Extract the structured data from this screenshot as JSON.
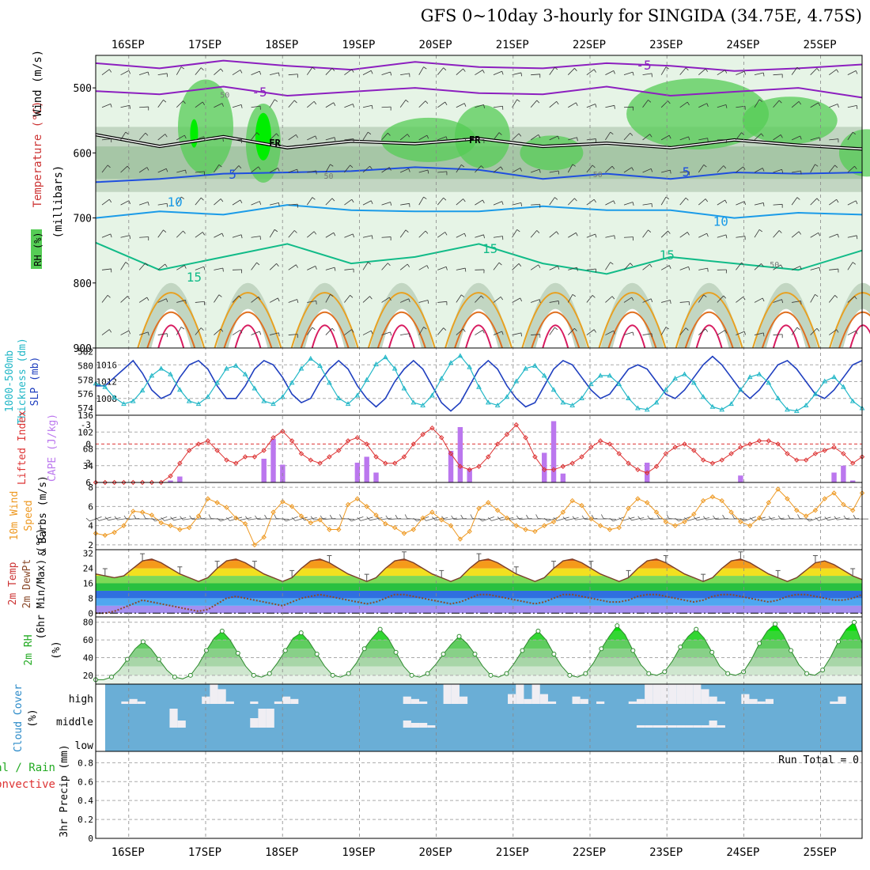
{
  "title": "GFS 0~10day 3-hourly for SINGIDA (34.75E, 4.75S)",
  "chart_data": {
    "type": "meteogram",
    "time_axis_labels": [
      "16SEP",
      "17SEP",
      "18SEP",
      "19SEP",
      "20SEP",
      "21SEP",
      "22SEP",
      "23SEP",
      "24SEP",
      "25SEP"
    ],
    "colors": {
      "rh_light": "#e6f4e6",
      "rh_mid": "#c2d6c2",
      "rh_dark": "#8fb98f",
      "rh_green": "#55cc55",
      "rh_bright": "#00ee00",
      "slp": "#1f3fbf",
      "thick": "#22b7c7",
      "li": "#dd3333",
      "cape": "#bb77ee",
      "wind": "#ee9922",
      "barb": "#555555",
      "cloud": "#6aaed6",
      "cloud_gap": "#f0eef3",
      "temp_fill": "#55cc55"
    },
    "panels": {
      "upper_air": {
        "ylabels": [
          "RH (%)",
          "Temperature (°C)",
          "Wind (m/s)",
          "(millibars)"
        ],
        "yticks": [
          500,
          600,
          700,
          800,
          900
        ],
        "ylim": [
          450,
          900
        ],
        "isotherm_labels": [
          {
            "text": "-5",
            "day": 1.7,
            "p": 513
          },
          {
            "text": "-5",
            "day": 6.7,
            "p": 472
          },
          {
            "text": "5",
            "day": 1.35,
            "p": 640
          },
          {
            "text": "5",
            "day": 7.25,
            "p": 636
          },
          {
            "text": "10",
            "day": 0.6,
            "p": 682
          },
          {
            "text": "10",
            "day": 7.7,
            "p": 712
          },
          {
            "text": "15",
            "day": 4.7,
            "p": 754
          },
          {
            "text": "15",
            "day": 7.0,
            "p": 764
          },
          {
            "text": "15",
            "day": 0.85,
            "p": 798
          }
        ],
        "freezing_labels": [
          {
            "text": "FR",
            "day": 1.9,
            "p": 590
          },
          {
            "text": "FR",
            "day": 4.5,
            "p": 585
          }
        ],
        "contour_label": "50",
        "isotherms": [
          {
            "name": "-5 upper",
            "color": "#8c1fbf",
            "p": [
              462,
              470,
              458,
              466,
              472,
              460,
              468,
              470,
              462,
              466,
              474,
              470,
              464
            ]
          },
          {
            "name": "-5 lower",
            "color": "#8c1fbf",
            "p": [
              505,
              510,
              498,
              512,
              506,
              500,
              508,
              510,
              498,
              512,
              506,
              500,
              515
            ]
          },
          {
            "name": "freezing",
            "color": "#000000",
            "p": [
              572,
              590,
              575,
              592,
              582,
              586,
              578,
              590,
              585,
              592,
              580,
              588,
              594
            ]
          },
          {
            "name": "5",
            "color": "#1f4fdf",
            "p": [
              645,
              640,
              632,
              630,
              628,
              622,
              626,
              640,
              632,
              640,
              630,
              632,
              630
            ]
          },
          {
            "name": "10",
            "color": "#1a9be8",
            "p": [
              700,
              690,
              695,
              680,
              688,
              690,
              690,
              682,
              688,
              688,
              700,
              692,
              695
            ]
          },
          {
            "name": "15",
            "color": "#11bb88",
            "p": [
              738,
              780,
              760,
              740,
              770,
              760,
              740,
              770,
              786,
              760,
              770,
              780,
              750
            ]
          }
        ]
      },
      "thickness_slp": {
        "ylabels": [
          "1000-500mb",
          "Thickness (dm)",
          "SLP (mb)"
        ],
        "left_ticks": [
          574,
          576,
          578,
          580,
          582
        ],
        "right_ticks": [
          1008,
          1012,
          1016
        ],
        "slp": [
          1011,
          1011,
          1013,
          1015,
          1017,
          1014,
          1010,
          1008,
          1009,
          1013,
          1016,
          1017,
          1015,
          1011,
          1008,
          1008,
          1011,
          1015,
          1017,
          1016,
          1013,
          1009,
          1007,
          1008,
          1012,
          1015,
          1017,
          1015,
          1011,
          1008,
          1006,
          1008,
          1012,
          1015,
          1017,
          1015,
          1011,
          1007,
          1005,
          1007,
          1011,
          1015,
          1017,
          1015,
          1011,
          1008,
          1006,
          1007,
          1011,
          1015,
          1017,
          1016,
          1013,
          1010,
          1008,
          1009,
          1012,
          1015,
          1016,
          1015,
          1012,
          1009,
          1008,
          1010,
          1013,
          1016,
          1018,
          1016,
          1013,
          1010,
          1008,
          1010,
          1013,
          1016,
          1017,
          1015,
          1012,
          1009,
          1008,
          1010,
          1013,
          1016,
          1017
        ],
        "thickness": [
          577.5,
          577.0,
          575.5,
          574.6,
          575.0,
          576.5,
          578.6,
          579.6,
          578.8,
          576.6,
          575.0,
          574.6,
          575.6,
          577.6,
          579.6,
          580.0,
          578.8,
          576.8,
          575.0,
          574.6,
          575.6,
          577.6,
          579.6,
          581.0,
          580.0,
          577.6,
          575.4,
          574.6,
          575.8,
          578.0,
          580.2,
          581.2,
          579.6,
          576.8,
          574.8,
          574.4,
          575.8,
          578.2,
          580.4,
          581.4,
          579.8,
          577.0,
          574.8,
          574.4,
          575.6,
          577.8,
          579.6,
          580.0,
          578.6,
          576.6,
          574.8,
          574.4,
          575.4,
          577.4,
          578.6,
          578.6,
          577.4,
          575.4,
          574.0,
          573.8,
          574.8,
          576.6,
          578.2,
          578.8,
          577.6,
          575.6,
          574.2,
          573.8,
          574.6,
          576.6,
          578.4,
          578.8,
          577.6,
          575.4,
          573.8,
          573.6,
          574.4,
          576.0,
          577.8,
          578.4,
          577.0,
          575.0,
          574.0
        ]
      },
      "instability": {
        "ylabels": [
          "Lifted Index",
          "CAPE (J/kg)"
        ],
        "li_ticks": [
          -3,
          0,
          3,
          6
        ],
        "cape_ticks": [
          34,
          68,
          102,
          136
        ],
        "li_zero_line": 0,
        "li": [
          6,
          6,
          6,
          6,
          6,
          6,
          6,
          6,
          5,
          3,
          1,
          0,
          -0.5,
          1,
          2.5,
          3,
          2,
          2,
          1,
          -1,
          -2,
          -0.5,
          1.5,
          2.5,
          3,
          2,
          1,
          -0.5,
          -1,
          0,
          2,
          3,
          3,
          2,
          0,
          -1.5,
          -2.5,
          -1,
          1.5,
          3.5,
          4,
          3.5,
          2,
          0,
          -1.5,
          -3,
          -1,
          2,
          4,
          4,
          3.5,
          3,
          2,
          0.5,
          -0.5,
          0,
          1.5,
          3,
          4,
          4.5,
          3.5,
          1.5,
          0.5,
          0,
          1,
          2.5,
          3,
          2.5,
          1.5,
          0.5,
          0,
          -0.5,
          -0.5,
          0,
          1.5,
          2.5,
          2.5,
          1.5,
          1,
          0.5,
          1.5,
          3,
          2
        ],
        "cape": [
          0,
          0,
          0,
          0,
          0,
          0,
          0,
          0,
          4,
          12,
          0,
          0,
          0,
          0,
          0,
          0,
          0,
          0,
          48,
          88,
          36,
          0,
          0,
          0,
          0,
          0,
          0,
          0,
          40,
          52,
          20,
          0,
          0,
          0,
          0,
          0,
          0,
          0,
          64,
          112,
          28,
          0,
          0,
          0,
          0,
          0,
          0,
          0,
          60,
          124,
          18,
          0,
          0,
          0,
          0,
          0,
          0,
          0,
          0,
          40,
          0,
          0,
          0,
          0,
          0,
          0,
          0,
          0,
          0,
          14,
          0,
          0,
          0,
          0,
          0,
          0,
          0,
          0,
          0,
          20,
          34,
          4,
          0
        ]
      },
      "wind10m": {
        "ylabels": [
          "10m Wind",
          "Speed",
          "& Barbs (m/s)"
        ],
        "yticks": [
          2,
          4,
          6,
          8
        ],
        "speed": [
          3.2,
          3.0,
          3.3,
          4.0,
          5.5,
          5.4,
          5.1,
          4.3,
          4.0,
          3.6,
          3.8,
          5.0,
          6.8,
          6.4,
          5.9,
          4.8,
          4.2,
          2.0,
          2.8,
          5.4,
          6.5,
          6.0,
          5.0,
          4.3,
          4.6,
          3.6,
          3.6,
          6.2,
          6.8,
          6.0,
          5.1,
          4.2,
          3.8,
          3.2,
          3.6,
          4.8,
          5.4,
          4.6,
          4.0,
          2.6,
          3.4,
          5.8,
          6.4,
          5.6,
          4.8,
          4.0,
          3.6,
          3.4,
          4.0,
          4.4,
          5.4,
          6.6,
          6.1,
          4.7,
          4.0,
          3.6,
          3.8,
          5.8,
          6.8,
          6.4,
          5.4,
          4.4,
          4.0,
          4.4,
          5.2,
          6.6,
          7.0,
          6.6,
          5.4,
          4.4,
          4.0,
          4.8,
          6.4,
          7.8,
          6.8,
          5.6,
          5.0,
          5.6,
          6.8,
          7.4,
          6.2,
          5.6,
          7.4
        ]
      },
      "temperature": {
        "ylabels": [
          "2m Temp",
          "2m DewPt",
          "(6hr Min/Max) (°C)"
        ],
        "yticks": [
          0,
          8,
          16,
          24,
          32
        ],
        "temp": [
          21,
          20,
          19,
          20,
          24,
          28,
          29,
          27,
          24,
          21,
          19,
          17,
          19,
          24,
          28,
          29,
          27,
          24,
          21,
          19,
          17,
          19,
          24,
          28,
          29,
          27,
          24,
          21,
          19,
          17,
          19,
          24,
          28,
          29,
          27,
          24,
          21,
          19,
          17,
          19,
          24,
          28,
          29,
          27,
          24,
          21,
          19,
          17,
          19,
          24,
          28,
          29,
          27,
          24,
          21,
          19,
          17,
          19,
          24,
          28,
          29,
          27,
          24,
          21,
          19,
          17,
          19,
          24,
          28,
          29,
          27,
          24,
          21,
          19,
          17,
          19,
          23,
          27,
          28,
          26,
          23,
          20,
          18
        ],
        "dewpt": [
          0,
          0,
          1,
          3,
          5,
          7,
          6,
          5,
          4,
          3,
          2,
          1,
          2,
          5,
          8,
          9,
          8,
          7,
          6,
          5,
          4,
          6,
          8,
          9,
          10,
          9,
          8,
          7,
          6,
          5,
          6,
          8,
          10,
          10,
          9,
          8,
          7,
          6,
          5,
          6,
          8,
          10,
          10,
          9,
          8,
          7,
          6,
          5,
          6,
          8,
          10,
          10,
          9,
          8,
          7,
          6,
          6,
          7,
          9,
          10,
          10,
          9,
          8,
          7,
          6,
          7,
          9,
          10,
          10,
          9,
          8,
          7,
          6,
          7,
          9,
          10,
          10,
          9,
          8,
          7,
          7,
          8,
          10
        ]
      },
      "rh2m": {
        "ylabels": [
          "2m RH",
          "(%)"
        ],
        "yticks": [
          20,
          40,
          60,
          80
        ],
        "rh": [
          15,
          15,
          18,
          26,
          38,
          50,
          58,
          50,
          38,
          26,
          18,
          16,
          20,
          32,
          48,
          62,
          70,
          60,
          45,
          30,
          20,
          18,
          22,
          34,
          48,
          62,
          68,
          58,
          44,
          30,
          20,
          18,
          22,
          34,
          50,
          62,
          72,
          62,
          46,
          30,
          20,
          18,
          22,
          32,
          44,
          55,
          64,
          56,
          44,
          30,
          20,
          18,
          22,
          34,
          48,
          62,
          70,
          60,
          44,
          30,
          20,
          18,
          22,
          34,
          50,
          64,
          76,
          66,
          48,
          32,
          22,
          20,
          24,
          36,
          52,
          64,
          72,
          62,
          46,
          30,
          22,
          20,
          24,
          38,
          56,
          70,
          78,
          66,
          48,
          32,
          22,
          20,
          26,
          40,
          58,
          72,
          80,
          56
        ]
      },
      "cloud": {
        "ylabels": [
          "Cloud Cover",
          "(%)"
        ],
        "levels": [
          "high",
          "middle",
          "low"
        ],
        "high_gap": [
          0,
          0,
          1,
          2,
          1,
          0,
          0,
          0,
          0,
          0,
          0,
          0,
          3,
          8,
          6,
          1,
          0,
          0,
          1,
          0,
          0,
          1,
          3,
          2,
          0,
          0,
          0,
          0,
          0,
          0,
          0,
          0,
          0,
          0,
          0,
          0,
          0,
          3,
          2,
          1,
          0,
          0,
          8,
          8,
          3,
          0,
          0,
          0,
          0,
          0,
          4,
          8,
          2,
          8,
          4,
          1,
          0,
          0,
          3,
          2,
          0,
          1,
          0,
          0,
          0,
          1,
          2,
          8,
          8,
          8,
          8,
          8,
          8,
          8,
          6,
          3,
          1,
          0,
          0,
          4,
          2,
          1,
          2,
          0,
          0,
          0,
          0,
          0,
          0,
          0,
          1,
          3,
          0,
          0
        ],
        "middle_gap": [
          0,
          0,
          0,
          0,
          0,
          0,
          0,
          0,
          8,
          3,
          0,
          0,
          0,
          0,
          0,
          0,
          0,
          0,
          4,
          8,
          8,
          0,
          0,
          0,
          0,
          0,
          0,
          0,
          0,
          0,
          0,
          0,
          0,
          0,
          0,
          0,
          0,
          3,
          2,
          2,
          1,
          0,
          0,
          0,
          0,
          0,
          0,
          0,
          0,
          0,
          0,
          0,
          0,
          0,
          0,
          0,
          0,
          0,
          0,
          0,
          0,
          0,
          0,
          0,
          0,
          0,
          1,
          1,
          1,
          1,
          1,
          1,
          1,
          1,
          1,
          3,
          1,
          0,
          0,
          0,
          0,
          0,
          0,
          0,
          0,
          0,
          0,
          0,
          0,
          0,
          0,
          0,
          0,
          0
        ]
      },
      "precip": {
        "ylabels": [
          "Total / Rain",
          "Convective",
          "3hr Precip (mm)"
        ],
        "yticks": [
          0,
          0.2,
          0.4,
          0.6,
          0.8
        ],
        "run_total_label": "Run Total = 0",
        "values": []
      }
    }
  }
}
